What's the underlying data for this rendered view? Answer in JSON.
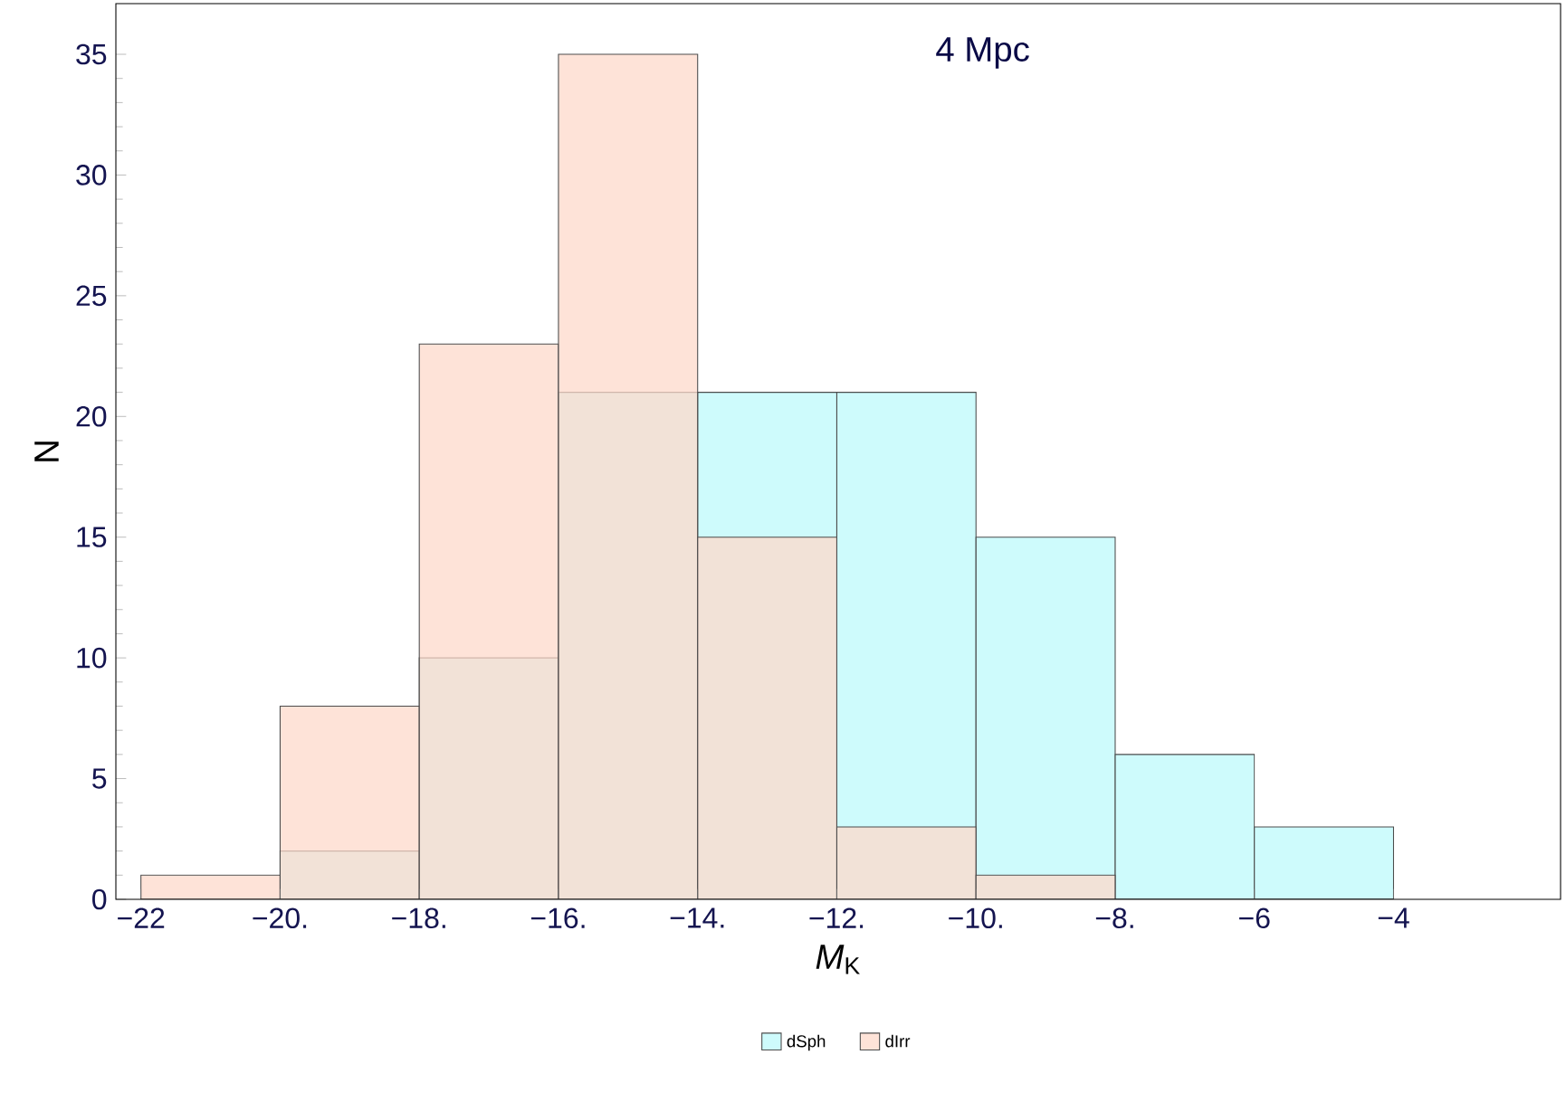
{
  "chart_data": {
    "type": "histogram",
    "xlabel": "*M*$_{K}$",
    "ylabel": "N",
    "annotations": [
      "4 Mpc"
    ],
    "bins": [
      -22,
      -20,
      -18,
      -16,
      -14,
      -12,
      -10,
      -8,
      -6,
      -4
    ],
    "series": [
      {
        "name": "dSph",
        "color": "#bdf9fb",
        "values": [
          0,
          2,
          10,
          21,
          21,
          21,
          15,
          6,
          3
        ]
      },
      {
        "name": "dIrr",
        "color": "#fdd9cb",
        "values": [
          1,
          8,
          23,
          35,
          15,
          3,
          1,
          0,
          0
        ]
      }
    ],
    "xlim": [
      -22.36,
      -1.6
    ],
    "ylim": [
      0,
      37.1
    ],
    "xticks": [
      {
        "value": -22,
        "label": "−22"
      },
      {
        "value": -20,
        "label": "−20."
      },
      {
        "value": -18,
        "label": "−18."
      },
      {
        "value": -16,
        "label": "−16."
      },
      {
        "value": -14,
        "label": "−14."
      },
      {
        "value": -12,
        "label": "−12."
      },
      {
        "value": -10,
        "label": "−10."
      },
      {
        "value": -8,
        "label": "−8."
      },
      {
        "value": -6,
        "label": "−6"
      },
      {
        "value": -4,
        "label": "−4"
      }
    ],
    "yticks": [
      0,
      5,
      10,
      15,
      20,
      25,
      30,
      35
    ],
    "legend": "bottom",
    "grid": false
  }
}
